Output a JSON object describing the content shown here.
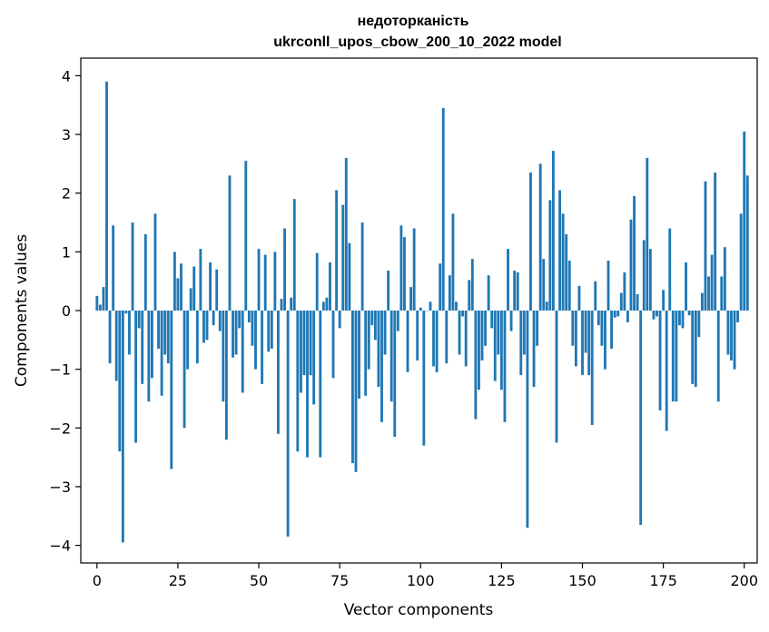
{
  "chart_data": {
    "type": "bar",
    "title_line1": "недоторканість",
    "title_line2": "ukrconll_upos_cbow_200_10_2022 model",
    "xlabel": "Vector components",
    "ylabel": "Components values",
    "xlim": [
      -5,
      204
    ],
    "ylim": [
      -4.3,
      4.3
    ],
    "xticks": [
      0,
      25,
      50,
      75,
      100,
      125,
      150,
      175,
      200
    ],
    "yticks": [
      4,
      3,
      2,
      1,
      0,
      -1,
      -2,
      -3,
      -4
    ],
    "ytick_labels": [
      "4",
      "3",
      "2",
      "1",
      "0",
      "−1",
      "−2",
      "−3",
      "−4"
    ],
    "bar_color": "#1f77b4",
    "values": [
      0.25,
      0.1,
      0.4,
      3.9,
      -0.9,
      1.45,
      -1.2,
      -2.4,
      -3.95,
      -0.05,
      -0.75,
      1.5,
      -2.25,
      -0.3,
      -1.25,
      1.3,
      -1.55,
      -1.15,
      1.65,
      -0.65,
      -1.45,
      -0.75,
      -0.9,
      -2.7,
      1.0,
      0.55,
      0.8,
      -2.0,
      -1.0,
      0.38,
      0.75,
      -0.9,
      1.05,
      -0.55,
      -0.5,
      0.82,
      -0.25,
      0.7,
      -0.35,
      -1.55,
      -2.2,
      2.3,
      -0.8,
      -0.75,
      -0.3,
      -1.4,
      2.55,
      -0.2,
      -0.6,
      -1.0,
      1.05,
      -1.25,
      0.95,
      -0.7,
      -0.65,
      1.0,
      -2.1,
      0.2,
      1.4,
      -3.85,
      0.22,
      1.9,
      -2.4,
      -1.4,
      -1.1,
      -2.5,
      -1.1,
      -1.6,
      0.98,
      -2.5,
      0.15,
      0.22,
      0.82,
      -1.15,
      2.05,
      -0.3,
      1.8,
      2.6,
      1.15,
      -2.6,
      -2.75,
      -1.5,
      1.5,
      -1.45,
      -1.0,
      -0.25,
      -0.5,
      -1.3,
      -1.9,
      -0.75,
      0.68,
      -1.55,
      -2.15,
      -0.35,
      1.45,
      1.25,
      -1.05,
      0.4,
      1.4,
      -0.85,
      0.05,
      -2.3,
      0.0,
      0.15,
      -0.95,
      -1.05,
      0.8,
      3.45,
      -0.9,
      0.6,
      1.65,
      0.15,
      -0.75,
      -0.1,
      -0.95,
      0.52,
      0.88,
      -1.85,
      -1.35,
      -0.85,
      -0.6,
      0.6,
      -0.3,
      -1.2,
      -0.75,
      -1.35,
      -1.9,
      1.05,
      -0.35,
      0.68,
      0.65,
      -1.1,
      -0.75,
      -3.7,
      2.35,
      -1.3,
      -0.6,
      2.5,
      0.88,
      0.15,
      1.88,
      2.72,
      -2.25,
      2.05,
      1.65,
      1.3,
      0.85,
      -0.6,
      -0.95,
      0.42,
      -1.1,
      -0.72,
      -1.1,
      -1.95,
      0.5,
      -0.25,
      -0.6,
      -1.0,
      0.85,
      -0.65,
      -0.12,
      -0.1,
      0.3,
      0.65,
      -0.2,
      1.55,
      1.95,
      0.28,
      -3.65,
      1.2,
      2.6,
      1.05,
      -0.15,
      -0.1,
      -1.7,
      0.35,
      -2.05,
      1.4,
      -1.55,
      -1.55,
      -0.25,
      -0.3,
      0.82,
      -0.08,
      -1.25,
      -1.3,
      -0.45,
      0.3,
      2.2,
      0.58,
      0.95,
      2.35,
      -1.55,
      0.58,
      1.08,
      -0.75,
      -0.85,
      -1.0,
      -0.2,
      1.65,
      3.05,
      2.3
    ]
  }
}
